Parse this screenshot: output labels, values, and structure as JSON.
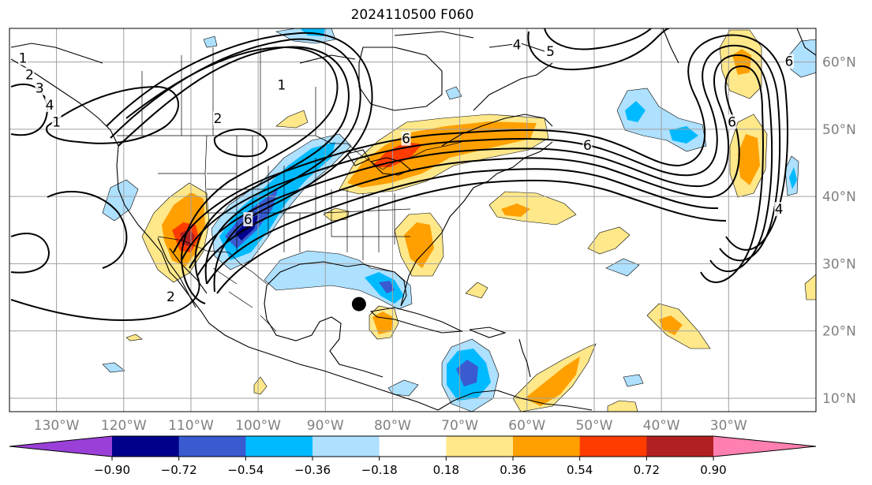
{
  "title": "2024110500 F060",
  "map": {
    "type": "map",
    "projection": "plate-carree",
    "lon_range": [
      -137,
      -17
    ],
    "lat_range": [
      8,
      65
    ],
    "lon_ticks": [
      {
        "value": -130,
        "label": "130°W"
      },
      {
        "value": -120,
        "label": "120°W"
      },
      {
        "value": -110,
        "label": "110°W"
      },
      {
        "value": -100,
        "label": "100°W"
      },
      {
        "value": -90,
        "label": "90°W"
      },
      {
        "value": -80,
        "label": "80°W"
      },
      {
        "value": -70,
        "label": "70°W"
      },
      {
        "value": -60,
        "label": "60°W"
      },
      {
        "value": -50,
        "label": "50°W"
      },
      {
        "value": -40,
        "label": "40°W"
      },
      {
        "value": -30,
        "label": "30°W"
      }
    ],
    "lat_ticks": [
      {
        "value": 10,
        "label": "10°N"
      },
      {
        "value": 20,
        "label": "20°N"
      },
      {
        "value": 30,
        "label": "30°N"
      },
      {
        "value": 40,
        "label": "40°N"
      },
      {
        "value": 50,
        "label": "50°N"
      },
      {
        "value": 60,
        "label": "60°N"
      }
    ],
    "storm_marker": {
      "lon": -85.0,
      "lat": 24.0
    },
    "contour_labels": [
      {
        "text": "1",
        "lon": -135.0,
        "lat": 60.5
      },
      {
        "text": "2",
        "lon": -134.0,
        "lat": 58.0
      },
      {
        "text": "3",
        "lon": -132.5,
        "lat": 56.0
      },
      {
        "text": "4",
        "lon": -131.0,
        "lat": 53.5
      },
      {
        "text": "1",
        "lon": -130.0,
        "lat": 51.0
      },
      {
        "text": "1",
        "lon": -96.5,
        "lat": 56.5
      },
      {
        "text": "2",
        "lon": -106.0,
        "lat": 51.5
      },
      {
        "text": "6",
        "lon": -78.0,
        "lat": 48.5
      },
      {
        "text": "6",
        "lon": -101.5,
        "lat": 36.5
      },
      {
        "text": "2",
        "lon": -113.0,
        "lat": 25.0
      },
      {
        "text": "4",
        "lon": -61.5,
        "lat": 62.5
      },
      {
        "text": "5",
        "lon": -56.5,
        "lat": 61.5
      },
      {
        "text": "6",
        "lon": -21.0,
        "lat": 60.0
      },
      {
        "text": "6",
        "lon": -29.5,
        "lat": 51.0
      },
      {
        "text": "6",
        "lon": -51.0,
        "lat": 47.5
      },
      {
        "text": "4",
        "lon": -22.5,
        "lat": 38.0
      }
    ]
  },
  "colorbar": {
    "ticks": [
      "−0.90",
      "−0.72",
      "−0.54",
      "−0.36",
      "−0.18",
      "0.18",
      "0.36",
      "0.54",
      "0.72",
      "0.90"
    ],
    "bins": [
      {
        "color": "#9a40d8"
      },
      {
        "color": "#00008a"
      },
      {
        "color": "#3a5ad0"
      },
      {
        "color": "#00baff"
      },
      {
        "color": "#aee0ff"
      },
      {
        "color": "#ffffff"
      },
      {
        "color": "#ffe88a"
      },
      {
        "color": "#ffa000"
      },
      {
        "color": "#ff3c00"
      },
      {
        "color": "#b02020"
      },
      {
        "color": "#ff80b0"
      }
    ]
  },
  "colors": {
    "purple": "#9a40d8",
    "navy": "#00008a",
    "blue": "#3a5ad0",
    "cyan": "#00baff",
    "lightblue": "#aee0ff",
    "yellow": "#ffe88a",
    "orange": "#ffa000",
    "red": "#ff3c00",
    "darkred": "#b02020",
    "pink": "#ff80b0"
  }
}
